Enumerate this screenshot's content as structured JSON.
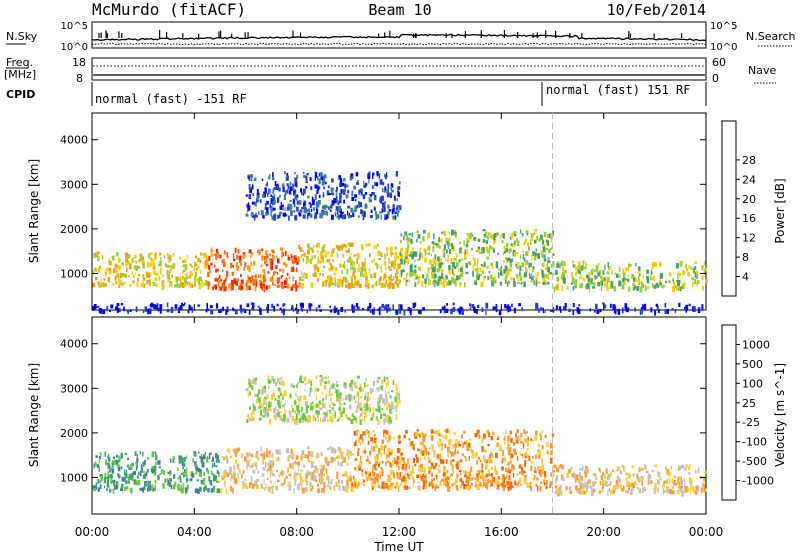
{
  "header": {
    "station": "McMurdo (fitACF)",
    "beam": "Beam 10",
    "date": "10/Feb/2014"
  },
  "panels": {
    "nsky": {
      "left_label": "N.Sky",
      "right_label": "N.Search",
      "left_ticks": [
        "10^5",
        "10^0"
      ],
      "right_ticks": [
        "10^5",
        "10^0"
      ]
    },
    "freq": {
      "left_label_line1": "Freq.",
      "left_label_line2": "[MHz]",
      "right_label": "Nave",
      "left_ticks": [
        "18",
        "8"
      ],
      "right_ticks": [
        "60",
        "0"
      ],
      "freq_mhz": 10,
      "nave": 20
    },
    "cpid": {
      "label": "CPID",
      "modes": [
        {
          "label": "normal (fast) -151 RF",
          "start_hour": 0
        },
        {
          "label": "normal (fast) 151 RF",
          "start_hour": 18
        }
      ]
    }
  },
  "chart_data": [
    {
      "type": "heatmap",
      "name": "power",
      "ylabel": "Slant Range [km]",
      "xlabel": "",
      "x_ticks": [
        "00:00",
        "04:00",
        "08:00",
        "12:00",
        "16:00",
        "20:00",
        "00:00"
      ],
      "x_range_hours": [
        0,
        24
      ],
      "y_range_km": [
        180,
        4600
      ],
      "y_ticks": [
        1000,
        2000,
        3000,
        4000
      ],
      "colorbar": {
        "label": "Power [dB]",
        "tick_labels": [
          "4",
          "8",
          "12",
          "16",
          "20",
          "24",
          "28"
        ],
        "colors": [
          "#0000ff",
          "#1f3fcf",
          "#3a7f9a",
          "#3f9f6f",
          "#99cc33",
          "#ffcc00",
          "#ff9900",
          "#ff6600",
          "#ff2200"
        ]
      },
      "scatter_bands": [
        {
          "h_start": 0,
          "h_end": 4.5,
          "r_min": 750,
          "r_max": 1500,
          "level": 5
        },
        {
          "h_start": 4.5,
          "h_end": 8,
          "r_min": 700,
          "r_max": 1600,
          "level": 7
        },
        {
          "h_start": 8,
          "h_end": 12,
          "r_min": 750,
          "r_max": 1700,
          "level": 5
        },
        {
          "h_start": 12,
          "h_end": 18,
          "r_min": 800,
          "r_max": 2000,
          "level": 4
        },
        {
          "h_start": 18,
          "h_end": 24,
          "r_min": 700,
          "r_max": 1300,
          "level": 4
        },
        {
          "h_start": 6,
          "h_end": 12,
          "r_min": 2300,
          "r_max": 3300,
          "level": 1
        },
        {
          "h_start": 0,
          "h_end": 24,
          "r_min": 180,
          "r_max": 350,
          "level": 0
        }
      ]
    },
    {
      "type": "heatmap",
      "name": "velocity",
      "ylabel": "Slant Range [km]",
      "xlabel": "Time UT",
      "x_ticks": [
        "00:00",
        "04:00",
        "08:00",
        "12:00",
        "16:00",
        "20:00",
        "00:00"
      ],
      "x_range_hours": [
        0,
        24
      ],
      "y_range_km": [
        180,
        4600
      ],
      "y_ticks": [
        1000,
        2000,
        3000,
        4000
      ],
      "colorbar": {
        "label": "Velocity [m s^-1]",
        "tick_labels": [
          "1000",
          "500",
          "100",
          "25",
          "-25",
          "-100",
          "-500",
          "-1000"
        ],
        "colors": [
          "#1f3fcf",
          "#3a7f9a",
          "#3f9f6f",
          "#66cc33",
          "#c0c0c0",
          "#ffcc33",
          "#ff9933",
          "#ff6600",
          "#ff2200"
        ]
      },
      "scatter_bands": [
        {
          "h_start": 0,
          "h_end": 5,
          "r_min": 750,
          "r_max": 1600,
          "level": 2
        },
        {
          "h_start": 5,
          "h_end": 10,
          "r_min": 750,
          "r_max": 1700,
          "level": 5
        },
        {
          "h_start": 10,
          "h_end": 18,
          "r_min": 800,
          "r_max": 2100,
          "level": 6
        },
        {
          "h_start": 18,
          "h_end": 24,
          "r_min": 700,
          "r_max": 1300,
          "level": 5
        },
        {
          "h_start": 6,
          "h_end": 12,
          "r_min": 2300,
          "r_max": 3300,
          "level": 4
        }
      ]
    }
  ]
}
